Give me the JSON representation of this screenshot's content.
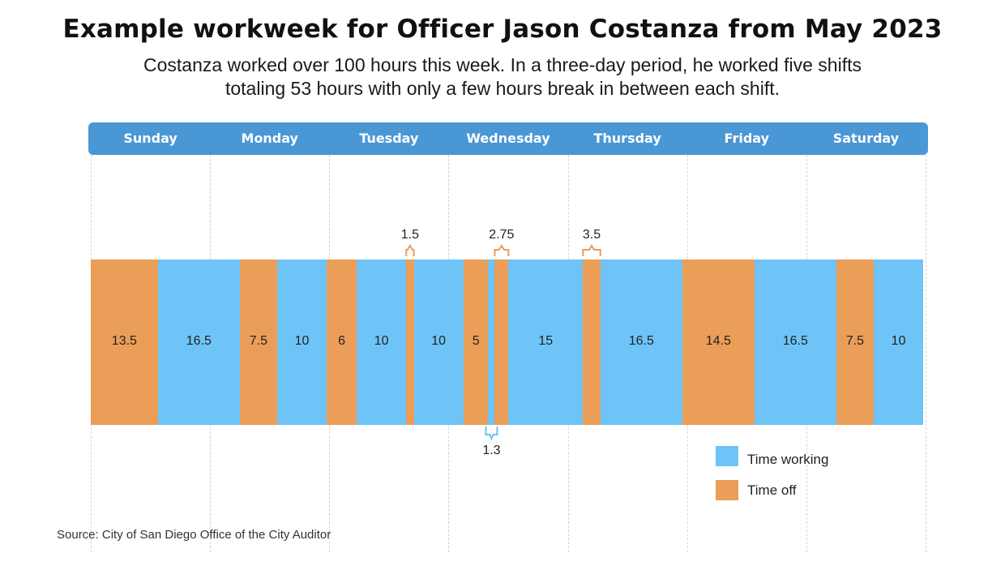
{
  "title": "Example workweek for Officer Jason Costanza from May 2023",
  "subtitle_line1": "Costanza worked over 100 hours this week. In a three-day period, he worked five shifts",
  "subtitle_line2": "totaling 53 hours with only a few hours break in between each shift.",
  "source": "Source: City of San Diego Office of the City Auditor",
  "colors": {
    "work": "#6ec4f7",
    "off": "#ea9e58",
    "header": "#4a97d6"
  },
  "chart_data": {
    "type": "bar",
    "orientation": "horizontal-timeline",
    "title": "Example workweek for Officer Jason Costanza from May 2023",
    "days": [
      "Sunday",
      "Monday",
      "Tuesday",
      "Wednesday",
      "Thursday",
      "Friday",
      "Saturday"
    ],
    "hours_per_day": 24,
    "segments": [
      {
        "type": "off",
        "hours": 13.5,
        "label": "13.5"
      },
      {
        "type": "work",
        "hours": 16.5,
        "label": "16.5"
      },
      {
        "type": "off",
        "hours": 7.5,
        "label": "7.5"
      },
      {
        "type": "work",
        "hours": 10,
        "label": "10"
      },
      {
        "type": "off",
        "hours": 6,
        "label": "6"
      },
      {
        "type": "work",
        "hours": 10,
        "label": "10"
      },
      {
        "type": "off",
        "hours": 1.5,
        "label": "1.5"
      },
      {
        "type": "work",
        "hours": 10,
        "label": "10"
      },
      {
        "type": "off",
        "hours": 5,
        "label": "5"
      },
      {
        "type": "work",
        "hours": 1.3,
        "label": "1.3"
      },
      {
        "type": "off",
        "hours": 2.75,
        "label": "2.75"
      },
      {
        "type": "work",
        "hours": 15,
        "label": "15"
      },
      {
        "type": "off",
        "hours": 3.5,
        "label": "3.5"
      },
      {
        "type": "work",
        "hours": 16.5,
        "label": "16.5"
      },
      {
        "type": "off",
        "hours": 14.5,
        "label": "14.5"
      },
      {
        "type": "work",
        "hours": 16.5,
        "label": "16.5"
      },
      {
        "type": "off",
        "hours": 7.5,
        "label": "7.5"
      },
      {
        "type": "work",
        "hours": 10,
        "label": "10"
      }
    ],
    "legend": [
      {
        "type": "work",
        "label": "Time working"
      },
      {
        "type": "off",
        "label": "Time off"
      }
    ]
  }
}
